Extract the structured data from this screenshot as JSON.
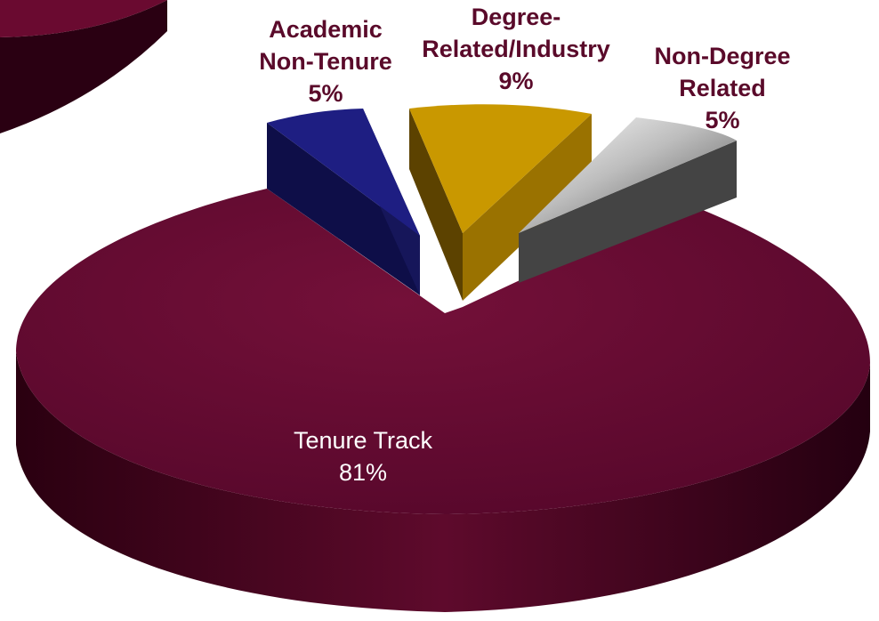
{
  "chart_data": {
    "type": "pie",
    "title": "",
    "slices": [
      {
        "label_lines": [
          "Tenure Track"
        ],
        "value": 81,
        "value_label": "81%",
        "color": "#6b0a32"
      },
      {
        "label_lines": [
          "Academic",
          "Non-Tenure"
        ],
        "value": 5,
        "value_label": "5%",
        "color": "#1e1e78"
      },
      {
        "label_lines": [
          "Degree-",
          "Related/Industry"
        ],
        "value": 9,
        "value_label": "9%",
        "color": "#c89600"
      },
      {
        "label_lines": [
          "Non-Degree",
          "Related"
        ],
        "value": 5,
        "value_label": "5%",
        "color": "#7a7a7a"
      }
    ]
  },
  "colors": {
    "background": "#ffffff",
    "dark_label": "#5a0a2a",
    "light_label": "#ffffff"
  }
}
